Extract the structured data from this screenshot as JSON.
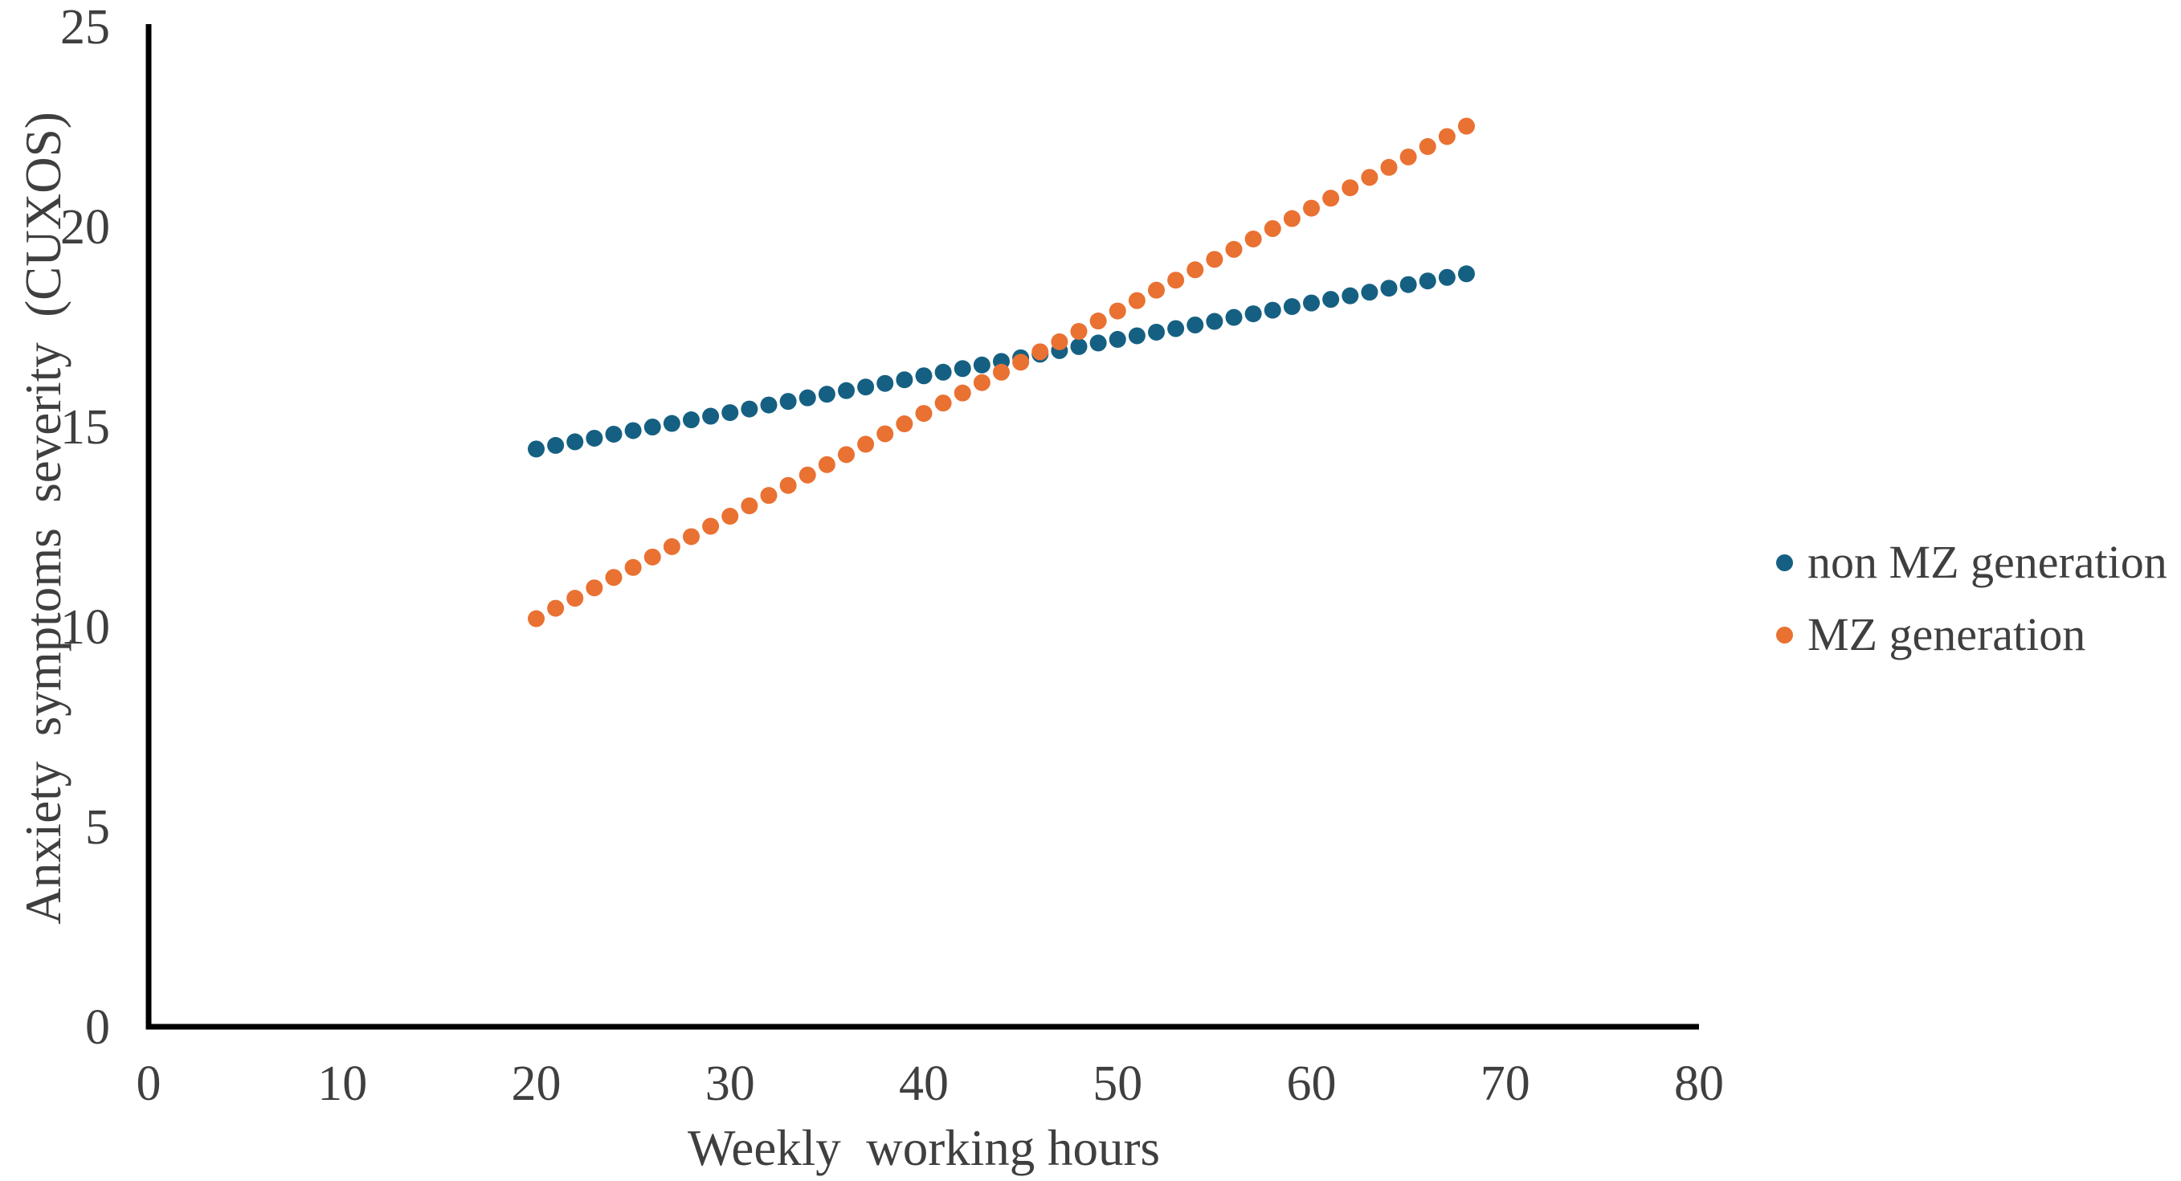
{
  "figure": {
    "background_color": "#FFFFFF",
    "axis_line_color": "#000000",
    "text_color": "#3F3F3F"
  },
  "legend": {
    "position": "right",
    "marker_shape": "circle"
  },
  "chart_data": {
    "type": "scatter",
    "title": "",
    "xlabel": "Weekly  working hours",
    "ylabel": "Anxiety  symptoms  severity  (CUXOS)",
    "xlim": [
      0,
      80
    ],
    "ylim": [
      0,
      25
    ],
    "x_ticks": [
      0,
      10,
      20,
      30,
      40,
      50,
      60,
      70,
      80
    ],
    "y_ticks": [
      0,
      5,
      10,
      15,
      20,
      25
    ],
    "grid": false,
    "legend_position": "right",
    "series": [
      {
        "name": "non MZ generation",
        "color": "#156082",
        "x": [
          20,
          21,
          22,
          23,
          24,
          25,
          26,
          27,
          28,
          29,
          30,
          31,
          32,
          33,
          34,
          35,
          36,
          37,
          38,
          39,
          40,
          41,
          42,
          43,
          44,
          45,
          46,
          47,
          48,
          49,
          50,
          51,
          52,
          53,
          54,
          55,
          56,
          57,
          58,
          59,
          60,
          61,
          62,
          63,
          64,
          65,
          66,
          67,
          68
        ],
        "y": [
          14.44,
          14.53,
          14.62,
          14.71,
          14.81,
          14.9,
          14.99,
          15.08,
          15.17,
          15.26,
          15.35,
          15.44,
          15.54,
          15.63,
          15.72,
          15.81,
          15.9,
          15.99,
          16.08,
          16.17,
          16.27,
          16.36,
          16.45,
          16.54,
          16.63,
          16.72,
          16.81,
          16.9,
          17.0,
          17.09,
          17.18,
          17.27,
          17.36,
          17.45,
          17.54,
          17.63,
          17.73,
          17.82,
          17.91,
          18.0,
          18.09,
          18.18,
          18.27,
          18.36,
          18.46,
          18.55,
          18.64,
          18.73,
          18.82
        ]
      },
      {
        "name": "MZ generation",
        "color": "#E97132",
        "x": [
          20,
          21,
          22,
          23,
          24,
          25,
          26,
          27,
          28,
          29,
          30,
          31,
          32,
          33,
          34,
          35,
          36,
          37,
          38,
          39,
          40,
          41,
          42,
          43,
          44,
          45,
          46,
          47,
          48,
          49,
          50,
          51,
          52,
          53,
          54,
          55,
          56,
          57,
          58,
          59,
          60,
          61,
          62,
          63,
          64,
          65,
          66,
          67,
          68
        ],
        "y": [
          10.2,
          10.46,
          10.71,
          10.97,
          11.23,
          11.48,
          11.74,
          12.0,
          12.25,
          12.51,
          12.76,
          13.02,
          13.28,
          13.53,
          13.79,
          14.05,
          14.3,
          14.56,
          14.82,
          15.07,
          15.33,
          15.59,
          15.84,
          16.1,
          16.36,
          16.61,
          16.87,
          17.12,
          17.38,
          17.64,
          17.89,
          18.15,
          18.41,
          18.66,
          18.92,
          19.18,
          19.43,
          19.69,
          19.95,
          20.2,
          20.46,
          20.71,
          20.97,
          21.23,
          21.48,
          21.74,
          22.0,
          22.25,
          22.51
        ]
      }
    ]
  }
}
